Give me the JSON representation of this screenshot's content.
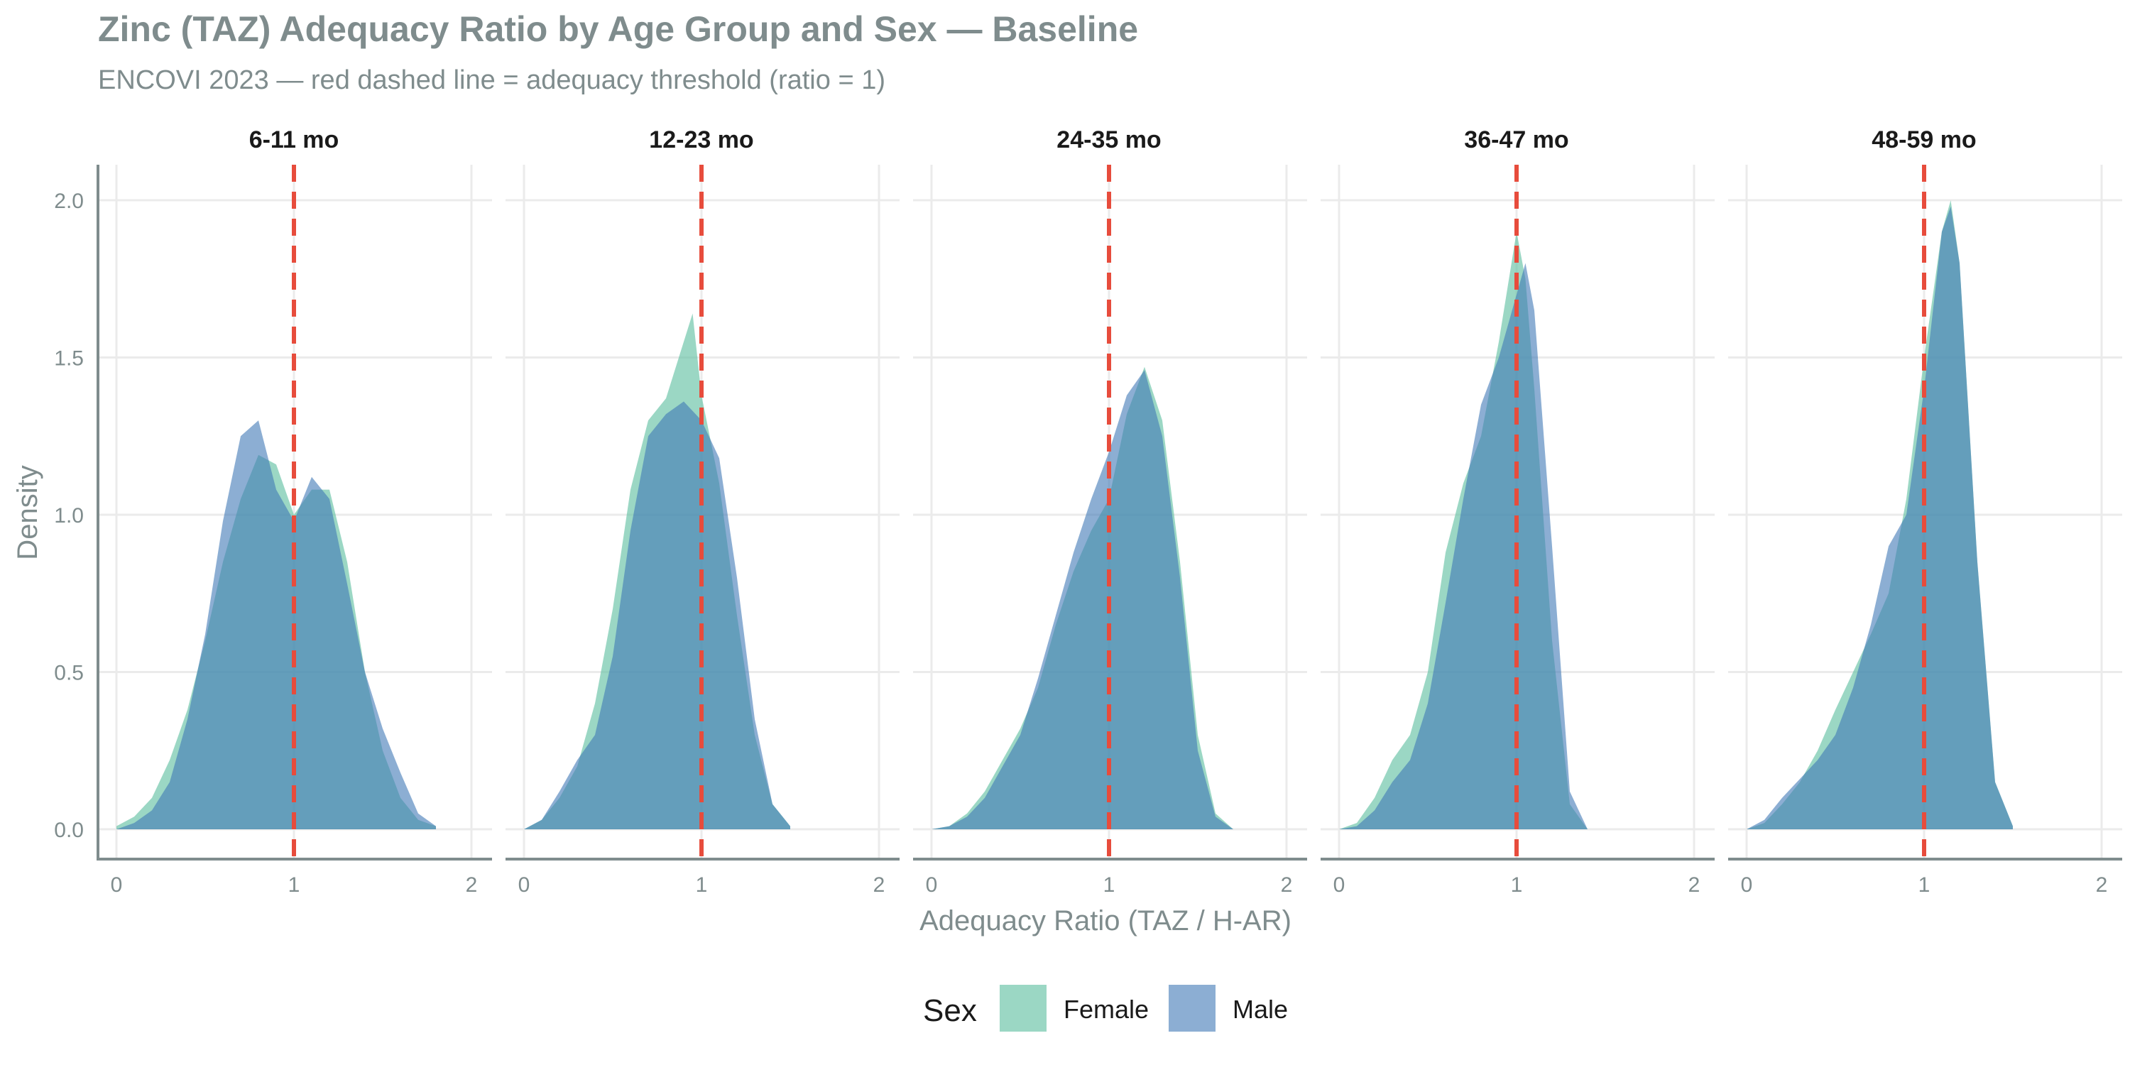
{
  "chart_data": {
    "type": "area",
    "title": "Zinc (TAZ) Adequacy Ratio by Age Group and Sex — Baseline",
    "subtitle": "ENCOVI 2023 — red dashed line = adequacy threshold (ratio = 1)",
    "xlabel": "Adequacy Ratio (TAZ / H-AR)",
    "ylabel": "Density",
    "xlim": [
      0,
      2
    ],
    "ylim": [
      0,
      2.0
    ],
    "x_ticks": [
      "0",
      "1",
      "2"
    ],
    "y_ticks": [
      "0.0",
      "0.5",
      "1.0",
      "1.5",
      "2.0"
    ],
    "y_tick_values": [
      0,
      0.5,
      1.0,
      1.5,
      2.0
    ],
    "threshold": 1,
    "threshold_color": "#e74c3c",
    "grid": true,
    "legend": {
      "title": "Sex",
      "position": "bottom",
      "items": [
        {
          "label": "Female",
          "color": "#66c2a5"
        },
        {
          "label": "Male",
          "color": "#3f78b5"
        }
      ]
    },
    "facets": [
      {
        "label": "6-11 mo",
        "series": [
          {
            "name": "Female",
            "x": [
              0,
              0.1,
              0.2,
              0.3,
              0.4,
              0.5,
              0.6,
              0.7,
              0.8,
              0.9,
              1.0,
              1.1,
              1.2,
              1.3,
              1.4,
              1.5,
              1.6,
              1.7,
              1.8
            ],
            "y": [
              0.01,
              0.04,
              0.1,
              0.22,
              0.38,
              0.6,
              0.85,
              1.05,
              1.19,
              1.16,
              1.0,
              1.08,
              1.08,
              0.85,
              0.5,
              0.25,
              0.1,
              0.03,
              0.01
            ]
          },
          {
            "name": "Male",
            "x": [
              0,
              0.1,
              0.2,
              0.3,
              0.4,
              0.5,
              0.6,
              0.7,
              0.8,
              0.9,
              1.0,
              1.1,
              1.2,
              1.3,
              1.4,
              1.5,
              1.6,
              1.7,
              1.8
            ],
            "y": [
              0.0,
              0.02,
              0.06,
              0.15,
              0.35,
              0.62,
              0.98,
              1.25,
              1.3,
              1.08,
              0.98,
              1.12,
              1.05,
              0.78,
              0.5,
              0.32,
              0.18,
              0.05,
              0.01
            ]
          }
        ]
      },
      {
        "label": "12-23 mo",
        "series": [
          {
            "name": "Female",
            "x": [
              0,
              0.1,
              0.2,
              0.3,
              0.4,
              0.5,
              0.6,
              0.7,
              0.8,
              0.9,
              0.95,
              1.0,
              1.1,
              1.2,
              1.3,
              1.4,
              1.5
            ],
            "y": [
              0.0,
              0.03,
              0.1,
              0.2,
              0.4,
              0.7,
              1.08,
              1.3,
              1.37,
              1.55,
              1.64,
              1.38,
              1.1,
              0.68,
              0.3,
              0.08,
              0.01
            ]
          },
          {
            "name": "Male",
            "x": [
              0,
              0.1,
              0.2,
              0.3,
              0.4,
              0.5,
              0.6,
              0.7,
              0.8,
              0.9,
              1.0,
              1.1,
              1.2,
              1.3,
              1.4,
              1.5
            ],
            "y": [
              0.0,
              0.03,
              0.12,
              0.22,
              0.3,
              0.55,
              0.95,
              1.25,
              1.32,
              1.36,
              1.3,
              1.18,
              0.8,
              0.35,
              0.08,
              0.01
            ]
          }
        ]
      },
      {
        "label": "24-35 mo",
        "series": [
          {
            "name": "Female",
            "x": [
              0,
              0.1,
              0.2,
              0.3,
              0.4,
              0.5,
              0.6,
              0.7,
              0.8,
              0.9,
              1.0,
              1.1,
              1.2,
              1.3,
              1.4,
              1.5,
              1.6,
              1.7
            ],
            "y": [
              0.0,
              0.01,
              0.05,
              0.12,
              0.22,
              0.32,
              0.45,
              0.65,
              0.82,
              0.95,
              1.05,
              1.32,
              1.47,
              1.3,
              0.85,
              0.3,
              0.05,
              0.0
            ]
          },
          {
            "name": "Male",
            "x": [
              0,
              0.1,
              0.2,
              0.3,
              0.4,
              0.5,
              0.6,
              0.7,
              0.8,
              0.9,
              1.0,
              1.1,
              1.2,
              1.3,
              1.4,
              1.5,
              1.6,
              1.7
            ],
            "y": [
              0.0,
              0.01,
              0.04,
              0.1,
              0.2,
              0.3,
              0.48,
              0.68,
              0.88,
              1.05,
              1.2,
              1.38,
              1.46,
              1.25,
              0.8,
              0.25,
              0.04,
              0.0
            ]
          }
        ]
      },
      {
        "label": "36-47 mo",
        "series": [
          {
            "name": "Female",
            "x": [
              0,
              0.1,
              0.2,
              0.3,
              0.4,
              0.5,
              0.6,
              0.7,
              0.8,
              0.9,
              1.0,
              1.05,
              1.1,
              1.2,
              1.3,
              1.4
            ],
            "y": [
              0.0,
              0.02,
              0.1,
              0.22,
              0.3,
              0.5,
              0.88,
              1.1,
              1.25,
              1.55,
              1.9,
              1.75,
              1.4,
              0.6,
              0.08,
              0.0
            ]
          },
          {
            "name": "Male",
            "x": [
              0,
              0.1,
              0.2,
              0.3,
              0.4,
              0.5,
              0.6,
              0.7,
              0.8,
              0.9,
              1.0,
              1.05,
              1.1,
              1.2,
              1.3,
              1.4
            ],
            "y": [
              0.0,
              0.01,
              0.06,
              0.15,
              0.22,
              0.4,
              0.72,
              1.05,
              1.35,
              1.5,
              1.7,
              1.8,
              1.65,
              0.9,
              0.12,
              0.0
            ]
          }
        ]
      },
      {
        "label": "48-59 mo",
        "series": [
          {
            "name": "Female",
            "x": [
              0,
              0.1,
              0.2,
              0.3,
              0.4,
              0.5,
              0.6,
              0.7,
              0.8,
              0.9,
              1.0,
              1.1,
              1.15,
              1.2,
              1.3,
              1.4,
              1.5
            ],
            "y": [
              0.0,
              0.02,
              0.08,
              0.15,
              0.25,
              0.38,
              0.5,
              0.62,
              0.75,
              1.05,
              1.5,
              1.9,
              2.0,
              1.8,
              0.85,
              0.15,
              0.01
            ]
          },
          {
            "name": "Male",
            "x": [
              0,
              0.1,
              0.2,
              0.3,
              0.4,
              0.5,
              0.6,
              0.7,
              0.8,
              0.9,
              1.0,
              1.1,
              1.15,
              1.2,
              1.3,
              1.4,
              1.5
            ],
            "y": [
              0.0,
              0.03,
              0.1,
              0.16,
              0.22,
              0.3,
              0.45,
              0.65,
              0.9,
              1.0,
              1.4,
              1.9,
              1.98,
              1.8,
              0.85,
              0.15,
              0.01
            ]
          }
        ]
      }
    ]
  }
}
